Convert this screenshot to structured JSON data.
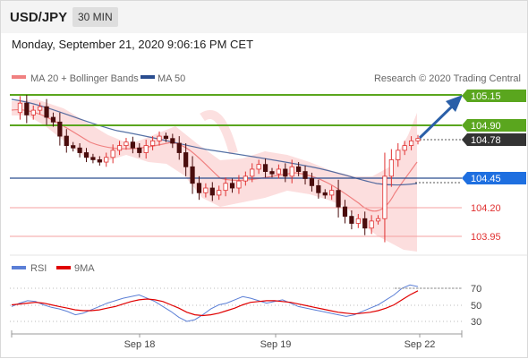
{
  "header": {
    "symbol": "USD/JPY",
    "timeframe": "30 MIN"
  },
  "datetime": "Monday, September 21, 2020 9:06:16 PM CET",
  "legend": {
    "ma20": {
      "label": "MA 20 + Bollinger Bands",
      "color": "#f08080"
    },
    "ma50": {
      "label": "MA 50",
      "color": "#2a4d8f"
    },
    "credit": "Research © 2020 Trading Central"
  },
  "rsi_legend": {
    "rsi": {
      "label": "RSI",
      "color": "#5b7fd6"
    },
    "ma9": {
      "label": "9MA",
      "color": "#e00000"
    }
  },
  "levels": [
    {
      "value": 105.15,
      "label": "105.15",
      "kind": "resistance",
      "color": "#5aa61e"
    },
    {
      "value": 104.9,
      "label": "104.90",
      "kind": "resistance",
      "color": "#5aa61e"
    },
    {
      "value": 104.78,
      "label": "104.78",
      "kind": "last",
      "color": "#333333"
    },
    {
      "value": 104.45,
      "label": "104.45",
      "kind": "pivot",
      "color": "#1e6fe0"
    },
    {
      "value": 104.2,
      "label": "104.20",
      "kind": "support",
      "color": "#e03030"
    },
    {
      "value": 103.95,
      "label": "103.95",
      "kind": "support",
      "color": "#e03030"
    }
  ],
  "chart_data": {
    "type": "line",
    "x_tick_labels": [
      "Sep 18",
      "Sep 19",
      "Sep 22"
    ],
    "price_range": [
      103.85,
      105.25
    ],
    "rsi_ticks": [
      "70",
      "50",
      "30"
    ],
    "rsi_range": [
      20,
      80
    ],
    "grid": false,
    "price_series": [
      105.0,
      105.08,
      104.98,
      105.02,
      105.05,
      104.96,
      104.92,
      104.8,
      104.72,
      104.7,
      104.66,
      104.62,
      104.6,
      104.58,
      104.62,
      104.68,
      104.72,
      104.75,
      104.7,
      104.66,
      104.72,
      104.76,
      104.8,
      104.78,
      104.74,
      104.66,
      104.54,
      104.4,
      104.32,
      104.36,
      104.3,
      104.34,
      104.4,
      104.36,
      104.42,
      104.46,
      104.52,
      104.56,
      104.5,
      104.48,
      104.52,
      104.46,
      104.54,
      104.5,
      104.44,
      104.38,
      104.32,
      104.3,
      104.34,
      104.2,
      104.12,
      104.06,
      104.1,
      104.02,
      104.08,
      104.1,
      104.46,
      104.6,
      104.68,
      104.72,
      104.76,
      104.78
    ],
    "rsi_series": [
      48,
      52,
      55,
      54,
      50,
      47,
      45,
      42,
      38,
      40,
      44,
      48,
      52,
      55,
      58,
      60,
      62,
      58,
      54,
      48,
      42,
      35,
      30,
      32,
      38,
      45,
      50,
      52,
      56,
      60,
      58,
      55,
      52,
      54,
      56,
      52,
      48,
      46,
      44,
      42,
      40,
      38,
      36,
      38,
      42,
      46,
      50,
      56,
      62,
      70,
      74,
      72
    ],
    "rsi_ma9": [
      50,
      51,
      52,
      53,
      52,
      50,
      48,
      46,
      44,
      43,
      43,
      44,
      46,
      48,
      51,
      54,
      56,
      57,
      56,
      54,
      50,
      46,
      41,
      38,
      37,
      38,
      40,
      43,
      46,
      50,
      53,
      54,
      55,
      55,
      54,
      53,
      51,
      49,
      47,
      45,
      43,
      41,
      40,
      39,
      40,
      41,
      43,
      46,
      50,
      56,
      62,
      67
    ]
  }
}
